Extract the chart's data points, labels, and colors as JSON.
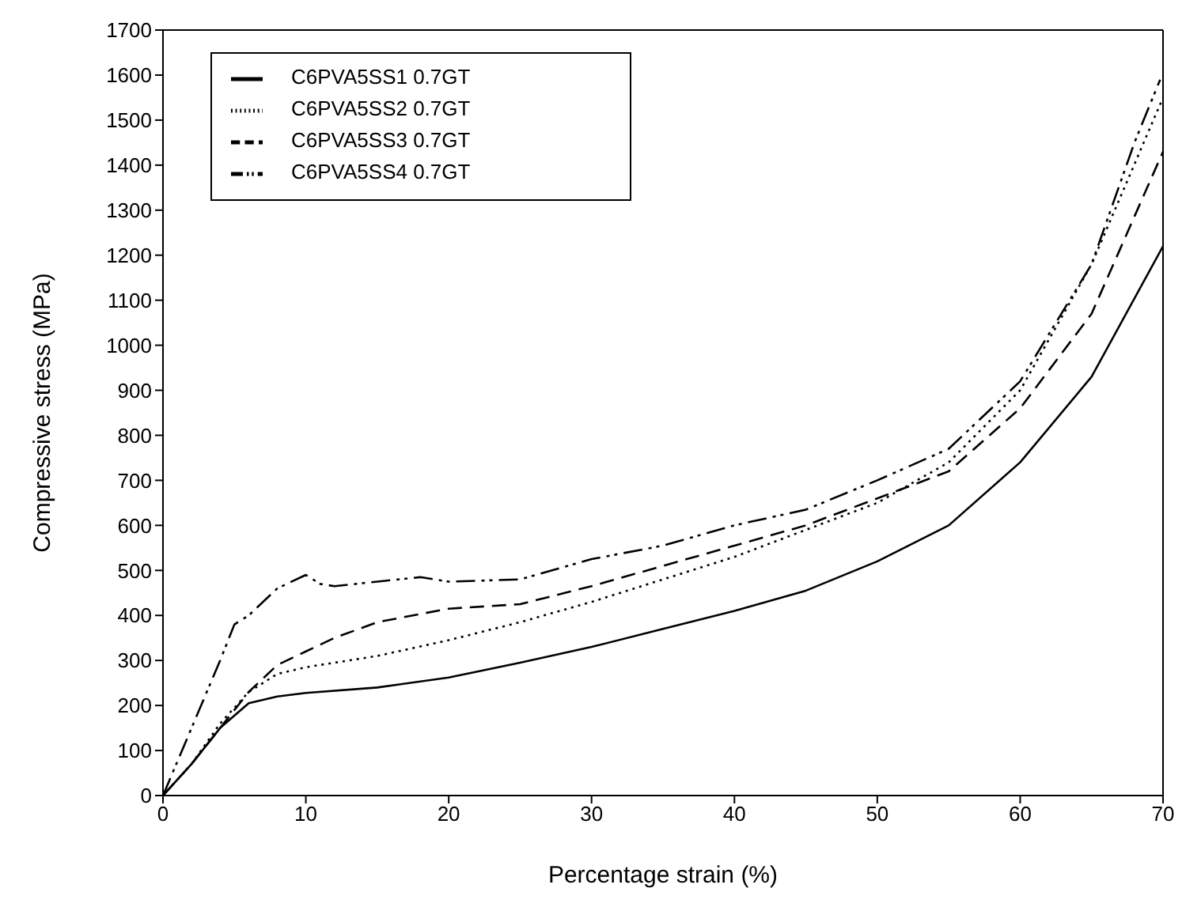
{
  "chart_data": {
    "type": "line",
    "xlabel": "Percentage strain (%)",
    "ylabel": "Compressive stress (MPa)",
    "xlim": [
      0,
      70
    ],
    "xticks": [
      0,
      10,
      20,
      30,
      40,
      50,
      60,
      70
    ],
    "ylim": [
      0,
      1700
    ],
    "yticks": [
      0,
      100,
      200,
      300,
      400,
      500,
      600,
      700,
      800,
      900,
      1000,
      1100,
      1200,
      1300,
      1400,
      1500,
      1600,
      1700
    ],
    "grid": false,
    "legend": "top left",
    "marker": "none",
    "series": [
      {
        "name": "C6PVA5SS1 0.7GT",
        "color": "#000000",
        "line_style": "solid",
        "x": [
          0,
          2,
          4,
          6,
          8,
          10,
          15,
          20,
          25,
          30,
          35,
          40,
          45,
          50,
          55,
          60,
          65,
          70
        ],
        "values": [
          0,
          70,
          150,
          205,
          220,
          228,
          240,
          262,
          295,
          330,
          370,
          410,
          455,
          520,
          600,
          740,
          930,
          1220
        ]
      },
      {
        "name": "C6PVA5SS2 0.7GT",
        "color": "#000000",
        "line_style": "dotted",
        "x": [
          0,
          2,
          4,
          6,
          8,
          10,
          15,
          20,
          25,
          30,
          35,
          40,
          45,
          50,
          55,
          60,
          65,
          70
        ],
        "values": [
          0,
          70,
          160,
          230,
          270,
          285,
          310,
          345,
          385,
          430,
          480,
          530,
          590,
          650,
          740,
          900,
          1180,
          1550
        ]
      },
      {
        "name": "C6PVA5SS3 0.7GT",
        "color": "#000000",
        "line_style": "dashed",
        "x": [
          0,
          2,
          4,
          6,
          8,
          10,
          12,
          15,
          20,
          25,
          30,
          35,
          40,
          45,
          50,
          55,
          60,
          65,
          70
        ],
        "values": [
          0,
          70,
          150,
          230,
          290,
          320,
          350,
          385,
          415,
          425,
          465,
          510,
          555,
          600,
          660,
          720,
          860,
          1070,
          1430
        ]
      },
      {
        "name": "C6PVA5SS4 0.7GT",
        "color": "#000000",
        "line_style": "dashdot",
        "x": [
          0,
          2,
          4,
          5,
          6,
          8,
          10,
          11,
          12,
          15,
          18,
          20,
          25,
          30,
          35,
          40,
          45,
          50,
          55,
          60,
          65,
          68,
          69.8
        ],
        "values": [
          0,
          150,
          300,
          380,
          400,
          460,
          490,
          470,
          465,
          475,
          485,
          475,
          480,
          525,
          555,
          600,
          635,
          700,
          770,
          920,
          1180,
          1450,
          1590
        ]
      }
    ]
  }
}
